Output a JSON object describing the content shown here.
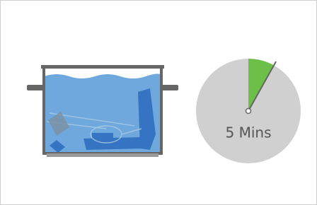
{
  "timer": {
    "label": "5 Mins"
  }
}
